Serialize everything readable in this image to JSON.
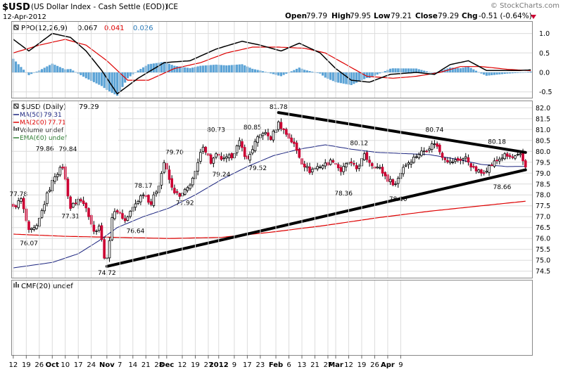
{
  "header": {
    "symbol": "$USD",
    "description": "(US Dollar Index - Cash Settle (EOD))",
    "exchange": "ICE",
    "date": "12-Apr-2012",
    "quote_open_label": "Open",
    "quote_open": "79.79",
    "quote_high_label": "High",
    "quote_high": "79.95",
    "quote_low_label": "Low",
    "quote_low": "79.21",
    "quote_close_label": "Close",
    "quote_close": "79.29",
    "quote_chg_label": "Chg",
    "quote_chg": "-0.51 (-0.64%)",
    "copyright": "© StockCharts.com"
  },
  "colors": {
    "up": "#ffffff",
    "down": "#cc0033",
    "candle_outline": "#000000",
    "ma50": "#1a237e",
    "ma200": "#dd0000",
    "ppo": "#000000",
    "signal": "#dd0000",
    "hist": "#5ba3d6",
    "trend": "#000000",
    "grid": "#dcdcdc"
  },
  "chart_data": [
    {
      "panel": "ppo",
      "type": "line",
      "legend": {
        "ppo_label": "PPO(12,26,9)",
        "ppo_value": "0.067",
        "signal_value": "0.041",
        "hist_value": "0.026"
      },
      "y_ticks": [
        "1.0",
        "0.5",
        "0.0",
        "-0.5"
      ],
      "ylim": [
        -0.65,
        1.3
      ],
      "ppo_nodes": [
        [
          0,
          0.85
        ],
        [
          6,
          0.55
        ],
        [
          15,
          1.0
        ],
        [
          22,
          0.9
        ],
        [
          28,
          0.55
        ],
        [
          34,
          0.05
        ],
        [
          40,
          -0.55
        ],
        [
          48,
          -0.15
        ],
        [
          58,
          0.25
        ],
        [
          68,
          0.3
        ],
        [
          78,
          0.6
        ],
        [
          88,
          0.8
        ],
        [
          95,
          0.7
        ],
        [
          103,
          0.55
        ],
        [
          110,
          0.75
        ],
        [
          118,
          0.5
        ],
        [
          124,
          0.1
        ],
        [
          130,
          -0.2
        ],
        [
          137,
          -0.25
        ],
        [
          145,
          -0.05
        ],
        [
          155,
          0.0
        ],
        [
          162,
          -0.05
        ],
        [
          168,
          0.2
        ],
        [
          175,
          0.3
        ],
        [
          182,
          0.05
        ],
        [
          188,
          0.05
        ],
        [
          195,
          0.05
        ],
        [
          200,
          0.07
        ]
      ],
      "signal_nodes": [
        [
          0,
          0.5
        ],
        [
          10,
          0.7
        ],
        [
          20,
          0.85
        ],
        [
          28,
          0.7
        ],
        [
          36,
          0.3
        ],
        [
          44,
          -0.2
        ],
        [
          52,
          -0.2
        ],
        [
          62,
          0.1
        ],
        [
          72,
          0.25
        ],
        [
          82,
          0.5
        ],
        [
          92,
          0.65
        ],
        [
          102,
          0.65
        ],
        [
          112,
          0.62
        ],
        [
          120,
          0.5
        ],
        [
          128,
          0.2
        ],
        [
          136,
          -0.1
        ],
        [
          146,
          -0.15
        ],
        [
          155,
          -0.1
        ],
        [
          164,
          0.0
        ],
        [
          172,
          0.15
        ],
        [
          180,
          0.15
        ],
        [
          190,
          0.08
        ],
        [
          200,
          0.04
        ]
      ]
    },
    {
      "panel": "price",
      "type": "candlestick",
      "legend": {
        "symbol_label": "$USD (Daily)",
        "close": "79.29",
        "ma50_label": "MA(50)",
        "ma50_value": "79.31",
        "ma200_label": "MA(200)",
        "ma200_value": "77.71",
        "volume_label": "Volume undef",
        "ema_label": "EMA(60) undef"
      },
      "y_ticks": [
        "82.0",
        "81.5",
        "81.0",
        "80.5",
        "80.0",
        "79.5",
        "79.0",
        "78.5",
        "78.0",
        "77.5",
        "77.0",
        "76.5",
        "76.0",
        "75.5",
        "75.0",
        "74.5"
      ],
      "ylim": [
        74.2,
        82.3
      ],
      "close_nodes": [
        [
          0,
          77.4
        ],
        [
          3,
          77.8
        ],
        [
          6,
          76.3
        ],
        [
          9,
          76.5
        ],
        [
          13,
          78.0
        ],
        [
          16,
          78.9
        ],
        [
          19,
          79.3
        ],
        [
          22,
          77.4
        ],
        [
          25,
          77.8
        ],
        [
          28,
          77.5
        ],
        [
          31,
          76.3
        ],
        [
          33,
          76.6
        ],
        [
          35,
          75.2
        ],
        [
          36,
          75.0
        ],
        [
          38,
          77.0
        ],
        [
          40,
          77.3
        ],
        [
          43,
          76.8
        ],
        [
          47,
          77.6
        ],
        [
          50,
          78.1
        ],
        [
          53,
          77.6
        ],
        [
          56,
          78.5
        ],
        [
          58,
          79.5
        ],
        [
          61,
          78.3
        ],
        [
          64,
          77.9
        ],
        [
          67,
          78.3
        ],
        [
          70,
          79.0
        ],
        [
          73,
          80.3
        ],
        [
          76,
          79.5
        ],
        [
          78,
          79.8
        ],
        [
          81,
          79.6
        ],
        [
          84,
          79.8
        ],
        [
          87,
          80.4
        ],
        [
          90,
          79.6
        ],
        [
          93,
          80.4
        ],
        [
          96,
          80.9
        ],
        [
          99,
          80.6
        ],
        [
          102,
          81.3
        ],
        [
          105,
          80.8
        ],
        [
          108,
          80.3
        ],
        [
          111,
          79.5
        ],
        [
          114,
          79.1
        ],
        [
          117,
          79.3
        ],
        [
          120,
          79.4
        ],
        [
          123,
          79.6
        ],
        [
          126,
          79.1
        ],
        [
          129,
          79.5
        ],
        [
          132,
          79.2
        ],
        [
          135,
          79.8
        ],
        [
          138,
          79.4
        ],
        [
          141,
          79.2
        ],
        [
          144,
          78.7
        ],
        [
          147,
          78.5
        ],
        [
          150,
          79.3
        ],
        [
          153,
          79.6
        ],
        [
          156,
          79.9
        ],
        [
          159,
          80.1
        ],
        [
          162,
          80.4
        ],
        [
          165,
          79.8
        ],
        [
          168,
          79.5
        ],
        [
          171,
          79.6
        ],
        [
          174,
          79.7
        ],
        [
          177,
          79.2
        ],
        [
          180,
          79.0
        ],
        [
          183,
          79.3
        ],
        [
          186,
          79.6
        ],
        [
          189,
          79.8
        ],
        [
          192,
          79.7
        ],
        [
          195,
          79.8
        ],
        [
          197,
          79.3
        ]
      ],
      "ma50_nodes": [
        [
          0,
          74.65
        ],
        [
          15,
          74.9
        ],
        [
          25,
          75.3
        ],
        [
          33,
          75.9
        ],
        [
          40,
          76.5
        ],
        [
          50,
          77.0
        ],
        [
          60,
          77.4
        ],
        [
          70,
          78.0
        ],
        [
          80,
          78.7
        ],
        [
          90,
          79.3
        ],
        [
          100,
          79.8
        ],
        [
          110,
          80.1
        ],
        [
          120,
          80.3
        ],
        [
          130,
          80.1
        ],
        [
          140,
          79.95
        ],
        [
          150,
          79.9
        ],
        [
          160,
          79.85
        ],
        [
          170,
          79.65
        ],
        [
          180,
          79.4
        ],
        [
          190,
          79.3
        ],
        [
          197,
          79.31
        ]
      ],
      "ma200_nodes": [
        [
          0,
          76.2
        ],
        [
          20,
          76.1
        ],
        [
          40,
          76.05
        ],
        [
          60,
          76.0
        ],
        [
          80,
          76.05
        ],
        [
          100,
          76.3
        ],
        [
          120,
          76.6
        ],
        [
          140,
          76.95
        ],
        [
          160,
          77.25
        ],
        [
          180,
          77.5
        ],
        [
          197,
          77.71
        ]
      ],
      "annotations": [
        {
          "label": "77.78",
          "i": 2,
          "price": 77.78,
          "pos": "above"
        },
        {
          "label": "76.07",
          "i": 6,
          "price": 76.07,
          "pos": "below"
        },
        {
          "label": "79.86",
          "i": 17,
          "price": 79.86,
          "pos": "above",
          "dx": -18
        },
        {
          "label": "79.84",
          "i": 21,
          "price": 79.84,
          "pos": "above"
        },
        {
          "label": "77.31",
          "i": 22,
          "price": 77.31,
          "pos": "below"
        },
        {
          "label": "74.72",
          "i": 36,
          "price": 74.72,
          "pos": "below"
        },
        {
          "label": "76.64",
          "i": 47,
          "price": 76.64,
          "pos": "below"
        },
        {
          "label": "78.17",
          "i": 50,
          "price": 78.17,
          "pos": "above"
        },
        {
          "label": "79.70",
          "i": 62,
          "price": 79.7,
          "pos": "above"
        },
        {
          "label": "77.92",
          "i": 66,
          "price": 77.92,
          "pos": "below"
        },
        {
          "label": "80.73",
          "i": 78,
          "price": 80.73,
          "pos": "above"
        },
        {
          "label": "79.24",
          "i": 80,
          "price": 79.24,
          "pos": "below"
        },
        {
          "label": "80.85",
          "i": 92,
          "price": 80.85,
          "pos": "above"
        },
        {
          "label": "79.52",
          "i": 94,
          "price": 79.52,
          "pos": "below"
        },
        {
          "label": "81.78",
          "i": 102,
          "price": 81.78,
          "pos": "above"
        },
        {
          "label": "78.36",
          "i": 127,
          "price": 78.36,
          "pos": "below"
        },
        {
          "label": "80.12",
          "i": 133,
          "price": 80.12,
          "pos": "above"
        },
        {
          "label": "78.10",
          "i": 148,
          "price": 78.1,
          "pos": "below"
        },
        {
          "label": "80.74",
          "i": 162,
          "price": 80.74,
          "pos": "above"
        },
        {
          "label": "80.18",
          "i": 186,
          "price": 80.18,
          "pos": "above"
        },
        {
          "label": "78.66",
          "i": 188,
          "price": 78.66,
          "pos": "below"
        }
      ],
      "trendlines": [
        {
          "name": "upper-trendline",
          "start": [
            102,
            81.78
          ],
          "end": [
            197,
            79.95
          ]
        },
        {
          "name": "lower-trendline",
          "start": [
            36,
            74.72
          ],
          "end": [
            197,
            79.15
          ]
        }
      ]
    },
    {
      "panel": "cmf",
      "type": "line",
      "legend": {
        "cmf_label": "CMF(20) undef"
      }
    }
  ],
  "x_axis": {
    "ticks": [
      {
        "label": "12",
        "i": 0
      },
      {
        "label": "19",
        "i": 5
      },
      {
        "label": "26",
        "i": 10
      },
      {
        "label": "Oct",
        "i": 15,
        "bold": true
      },
      {
        "label": "10",
        "i": 20
      },
      {
        "label": "17",
        "i": 25
      },
      {
        "label": "24",
        "i": 30
      },
      {
        "label": "Nov",
        "i": 36,
        "bold": true
      },
      {
        "label": "7",
        "i": 41
      },
      {
        "label": "14",
        "i": 46
      },
      {
        "label": "21",
        "i": 51
      },
      {
        "label": "28",
        "i": 56
      },
      {
        "label": "Dec",
        "i": 59,
        "bold": true
      },
      {
        "label": "12",
        "i": 65
      },
      {
        "label": "19",
        "i": 70
      },
      {
        "label": "27",
        "i": 75
      },
      {
        "label": "2012",
        "i": 79,
        "bold": true
      },
      {
        "label": "9",
        "i": 85
      },
      {
        "label": "17",
        "i": 90
      },
      {
        "label": "23",
        "i": 95
      },
      {
        "label": "Feb",
        "i": 101,
        "bold": true
      },
      {
        "label": "6",
        "i": 106
      },
      {
        "label": "13",
        "i": 111
      },
      {
        "label": "21",
        "i": 116
      },
      {
        "label": "27",
        "i": 121
      },
      {
        "label": "Mar",
        "i": 124,
        "bold": true
      },
      {
        "label": "12",
        "i": 129
      },
      {
        "label": "19",
        "i": 134
      },
      {
        "label": "26",
        "i": 139
      },
      {
        "label": "Apr",
        "i": 144,
        "bold": true
      },
      {
        "label": "9",
        "i": 149
      }
    ]
  }
}
